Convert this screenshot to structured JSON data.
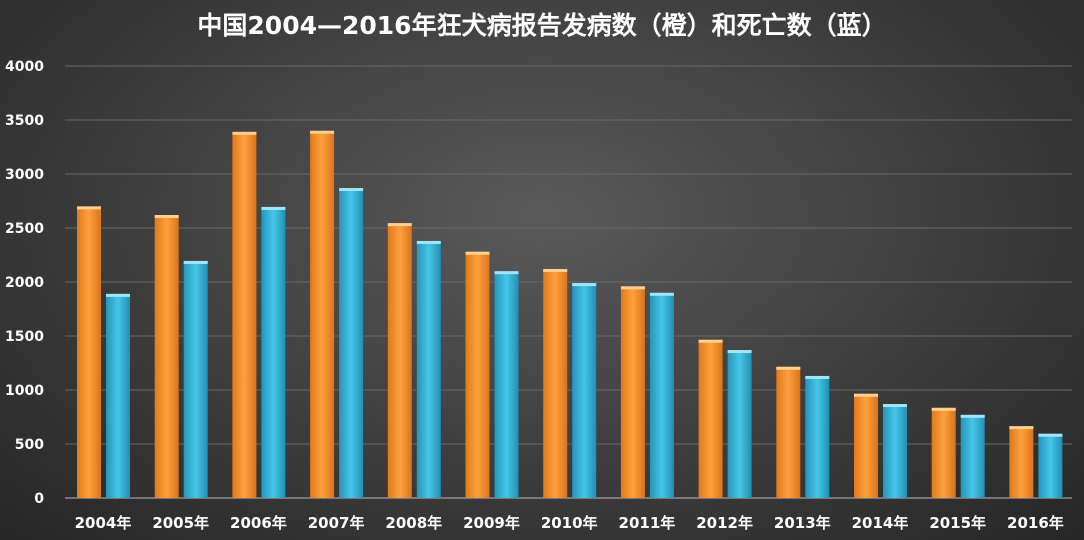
{
  "chart_data": {
    "type": "bar",
    "title": "中国2004—2016年狂犬病报告发病数（橙）和死亡数（蓝）",
    "categories": [
      "2004年",
      "2005年",
      "2006年",
      "2007年",
      "2008年",
      "2009年",
      "2010年",
      "2011年",
      "2012年",
      "2013年",
      "2014年",
      "2015年",
      "2016年"
    ],
    "series": [
      {
        "values": [
          2700,
          2620,
          3390,
          3400,
          2545,
          2280,
          2120,
          1960,
          1465,
          1215,
          965,
          835,
          665
        ],
        "color": "#f5922a"
      },
      {
        "values": [
          1890,
          2195,
          2695,
          2870,
          2380,
          2100,
          1990,
          1900,
          1370,
          1130,
          870,
          770,
          595
        ],
        "color": "#33b5d8"
      }
    ],
    "ylim": [
      0,
      4000
    ],
    "yticks": [
      0,
      500,
      1000,
      1500,
      2000,
      2500,
      3000,
      3500,
      4000
    ],
    "grid": true,
    "legend": "none"
  }
}
